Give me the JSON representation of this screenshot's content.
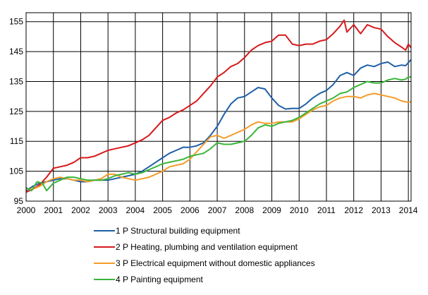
{
  "chart_data": {
    "type": "line",
    "xlim": [
      2000,
      2014.1
    ],
    "ylim": [
      95,
      158
    ],
    "y_ticks": [
      95,
      105,
      115,
      125,
      135,
      145,
      155
    ],
    "x_ticks": [
      "2000",
      "2001",
      "2002",
      "2003",
      "2004",
      "2005",
      "2006",
      "2007",
      "2008",
      "2009",
      "2010",
      "2011",
      "2012",
      "2013",
      "2014"
    ],
    "grid": true,
    "legend_position": "bottom",
    "series": [
      {
        "name": "1 P Structural building equipment",
        "color": "#1f5fa6",
        "points": [
          [
            2000.0,
            98.5
          ],
          [
            2000.25,
            100.0
          ],
          [
            2000.5,
            101.0
          ],
          [
            2000.75,
            101.5
          ],
          [
            2001.0,
            102.0
          ],
          [
            2001.25,
            102.5
          ],
          [
            2001.5,
            102.5
          ],
          [
            2001.75,
            102.0
          ],
          [
            2002.0,
            101.5
          ],
          [
            2002.25,
            101.5
          ],
          [
            2002.5,
            102.0
          ],
          [
            2002.75,
            102.0
          ],
          [
            2003.0,
            102.0
          ],
          [
            2003.25,
            102.5
          ],
          [
            2003.5,
            103.0
          ],
          [
            2003.75,
            103.5
          ],
          [
            2004.0,
            104.0
          ],
          [
            2004.25,
            105.0
          ],
          [
            2004.5,
            106.5
          ],
          [
            2004.75,
            108.0
          ],
          [
            2005.0,
            109.5
          ],
          [
            2005.25,
            111.0
          ],
          [
            2005.5,
            112.0
          ],
          [
            2005.75,
            113.0
          ],
          [
            2006.0,
            113.0
          ],
          [
            2006.25,
            113.5
          ],
          [
            2006.5,
            114.5
          ],
          [
            2006.75,
            117.0
          ],
          [
            2007.0,
            120.0
          ],
          [
            2007.25,
            124.0
          ],
          [
            2007.5,
            127.5
          ],
          [
            2007.75,
            129.5
          ],
          [
            2008.0,
            130.0
          ],
          [
            2008.25,
            131.5
          ],
          [
            2008.5,
            133.0
          ],
          [
            2008.75,
            132.5
          ],
          [
            2009.0,
            129.5
          ],
          [
            2009.25,
            127.0
          ],
          [
            2009.5,
            125.8
          ],
          [
            2009.75,
            126.0
          ],
          [
            2010.0,
            126.0
          ],
          [
            2010.25,
            127.5
          ],
          [
            2010.5,
            129.5
          ],
          [
            2010.75,
            131.0
          ],
          [
            2011.0,
            132.0
          ],
          [
            2011.25,
            134.0
          ],
          [
            2011.5,
            137.0
          ],
          [
            2011.75,
            138.0
          ],
          [
            2012.0,
            137.0
          ],
          [
            2012.25,
            139.5
          ],
          [
            2012.5,
            140.5
          ],
          [
            2012.75,
            140.0
          ],
          [
            2013.0,
            141.0
          ],
          [
            2013.25,
            141.5
          ],
          [
            2013.5,
            140.0
          ],
          [
            2013.75,
            140.5
          ],
          [
            2013.9,
            140.3
          ],
          [
            2014.1,
            142.3
          ]
        ]
      },
      {
        "name": "2 P Heating, plumbing and ventilation equipment",
        "color": "#d7191c",
        "points": [
          [
            2000.0,
            98.0
          ],
          [
            2000.25,
            99.0
          ],
          [
            2000.5,
            100.5
          ],
          [
            2000.75,
            103.0
          ],
          [
            2001.0,
            106.0
          ],
          [
            2001.25,
            106.5
          ],
          [
            2001.5,
            107.0
          ],
          [
            2001.75,
            108.0
          ],
          [
            2002.0,
            109.5
          ],
          [
            2002.25,
            109.5
          ],
          [
            2002.5,
            110.0
          ],
          [
            2002.75,
            111.0
          ],
          [
            2003.0,
            112.0
          ],
          [
            2003.25,
            112.5
          ],
          [
            2003.5,
            113.0
          ],
          [
            2003.75,
            113.5
          ],
          [
            2004.0,
            114.5
          ],
          [
            2004.25,
            115.5
          ],
          [
            2004.5,
            117.0
          ],
          [
            2004.75,
            119.5
          ],
          [
            2005.0,
            122.0
          ],
          [
            2005.25,
            123.0
          ],
          [
            2005.5,
            124.5
          ],
          [
            2005.75,
            125.5
          ],
          [
            2006.0,
            127.0
          ],
          [
            2006.25,
            128.5
          ],
          [
            2006.5,
            131.0
          ],
          [
            2006.75,
            133.5
          ],
          [
            2007.0,
            136.5
          ],
          [
            2007.25,
            138.0
          ],
          [
            2007.5,
            140.0
          ],
          [
            2007.75,
            141.0
          ],
          [
            2008.0,
            143.0
          ],
          [
            2008.25,
            145.5
          ],
          [
            2008.5,
            147.0
          ],
          [
            2008.75,
            148.0
          ],
          [
            2009.0,
            148.5
          ],
          [
            2009.25,
            150.5
          ],
          [
            2009.5,
            150.5
          ],
          [
            2009.75,
            147.5
          ],
          [
            2010.0,
            147.0
          ],
          [
            2010.25,
            147.5
          ],
          [
            2010.5,
            147.5
          ],
          [
            2010.75,
            148.5
          ],
          [
            2011.0,
            149.0
          ],
          [
            2011.25,
            151.0
          ],
          [
            2011.5,
            153.5
          ],
          [
            2011.65,
            155.5
          ],
          [
            2011.75,
            151.5
          ],
          [
            2012.0,
            154.0
          ],
          [
            2012.25,
            151.0
          ],
          [
            2012.5,
            154.0
          ],
          [
            2012.75,
            153.0
          ],
          [
            2013.0,
            152.5
          ],
          [
            2013.25,
            150.0
          ],
          [
            2013.5,
            148.0
          ],
          [
            2013.75,
            146.5
          ],
          [
            2013.9,
            145.5
          ],
          [
            2014.0,
            147.5
          ],
          [
            2014.1,
            146.3
          ]
        ]
      },
      {
        "name": "3 P Electrical equipment without domestic appliances",
        "color": "#f39c2a",
        "points": [
          [
            2000.0,
            99.0
          ],
          [
            2000.25,
            99.0
          ],
          [
            2000.5,
            100.0
          ],
          [
            2000.75,
            101.5
          ],
          [
            2001.0,
            102.5
          ],
          [
            2001.25,
            103.0
          ],
          [
            2001.5,
            102.5
          ],
          [
            2001.75,
            102.0
          ],
          [
            2002.0,
            102.0
          ],
          [
            2002.25,
            101.5
          ],
          [
            2002.5,
            102.0
          ],
          [
            2002.75,
            102.5
          ],
          [
            2003.0,
            104.0
          ],
          [
            2003.25,
            104.0
          ],
          [
            2003.5,
            103.0
          ],
          [
            2003.75,
            102.5
          ],
          [
            2004.0,
            102.0
          ],
          [
            2004.25,
            102.5
          ],
          [
            2004.5,
            103.0
          ],
          [
            2004.75,
            104.0
          ],
          [
            2005.0,
            105.0
          ],
          [
            2005.25,
            106.5
          ],
          [
            2005.5,
            107.0
          ],
          [
            2005.75,
            107.5
          ],
          [
            2006.0,
            109.0
          ],
          [
            2006.25,
            111.5
          ],
          [
            2006.5,
            114.0
          ],
          [
            2006.75,
            116.5
          ],
          [
            2007.0,
            117.0
          ],
          [
            2007.25,
            116.0
          ],
          [
            2007.5,
            117.0
          ],
          [
            2007.75,
            118.0
          ],
          [
            2008.0,
            119.0
          ],
          [
            2008.25,
            120.5
          ],
          [
            2008.5,
            121.5
          ],
          [
            2008.75,
            121.0
          ],
          [
            2009.0,
            121.0
          ],
          [
            2009.25,
            121.5
          ],
          [
            2009.5,
            121.5
          ],
          [
            2009.75,
            121.5
          ],
          [
            2010.0,
            122.5
          ],
          [
            2010.25,
            124.0
          ],
          [
            2010.5,
            125.5
          ],
          [
            2010.75,
            126.5
          ],
          [
            2011.0,
            127.0
          ],
          [
            2011.25,
            128.5
          ],
          [
            2011.5,
            129.5
          ],
          [
            2011.75,
            130.0
          ],
          [
            2012.0,
            130.0
          ],
          [
            2012.25,
            129.5
          ],
          [
            2012.5,
            130.5
          ],
          [
            2012.75,
            131.0
          ],
          [
            2013.0,
            130.5
          ],
          [
            2013.25,
            130.0
          ],
          [
            2013.5,
            129.5
          ],
          [
            2013.75,
            128.5
          ],
          [
            2014.0,
            128.0
          ],
          [
            2014.1,
            128.3
          ]
        ]
      },
      {
        "name": "4 P Painting equipment",
        "color": "#3ab53a",
        "points": [
          [
            2000.0,
            99.5
          ],
          [
            2000.2,
            98.5
          ],
          [
            2000.4,
            101.5
          ],
          [
            2000.6,
            101.0
          ],
          [
            2000.75,
            98.5
          ],
          [
            2001.0,
            101.0
          ],
          [
            2001.25,
            102.0
          ],
          [
            2001.5,
            103.0
          ],
          [
            2001.75,
            103.0
          ],
          [
            2002.0,
            102.5
          ],
          [
            2002.25,
            102.0
          ],
          [
            2002.5,
            102.0
          ],
          [
            2002.75,
            102.0
          ],
          [
            2003.0,
            102.5
          ],
          [
            2003.25,
            103.5
          ],
          [
            2003.5,
            104.0
          ],
          [
            2003.75,
            104.5
          ],
          [
            2004.0,
            104.0
          ],
          [
            2004.25,
            104.5
          ],
          [
            2004.5,
            105.5
          ],
          [
            2004.75,
            106.5
          ],
          [
            2005.0,
            107.5
          ],
          [
            2005.25,
            108.0
          ],
          [
            2005.5,
            108.5
          ],
          [
            2005.75,
            109.0
          ],
          [
            2006.0,
            110.0
          ],
          [
            2006.25,
            110.5
          ],
          [
            2006.5,
            111.0
          ],
          [
            2006.75,
            112.5
          ],
          [
            2007.0,
            114.5
          ],
          [
            2007.25,
            114.0
          ],
          [
            2007.5,
            114.0
          ],
          [
            2007.75,
            114.5
          ],
          [
            2008.0,
            115.0
          ],
          [
            2008.25,
            117.0
          ],
          [
            2008.5,
            119.5
          ],
          [
            2008.75,
            120.5
          ],
          [
            2009.0,
            120.0
          ],
          [
            2009.25,
            121.0
          ],
          [
            2009.5,
            121.5
          ],
          [
            2009.75,
            122.0
          ],
          [
            2010.0,
            123.0
          ],
          [
            2010.25,
            124.5
          ],
          [
            2010.5,
            126.0
          ],
          [
            2010.75,
            127.5
          ],
          [
            2011.0,
            128.5
          ],
          [
            2011.25,
            129.5
          ],
          [
            2011.5,
            131.0
          ],
          [
            2011.75,
            131.5
          ],
          [
            2012.0,
            133.0
          ],
          [
            2012.25,
            134.0
          ],
          [
            2012.5,
            135.0
          ],
          [
            2012.75,
            134.5
          ],
          [
            2013.0,
            134.5
          ],
          [
            2013.25,
            135.5
          ],
          [
            2013.5,
            136.0
          ],
          [
            2013.75,
            135.5
          ],
          [
            2013.9,
            135.8
          ],
          [
            2014.0,
            136.5
          ],
          [
            2014.1,
            136.5
          ]
        ]
      }
    ]
  }
}
